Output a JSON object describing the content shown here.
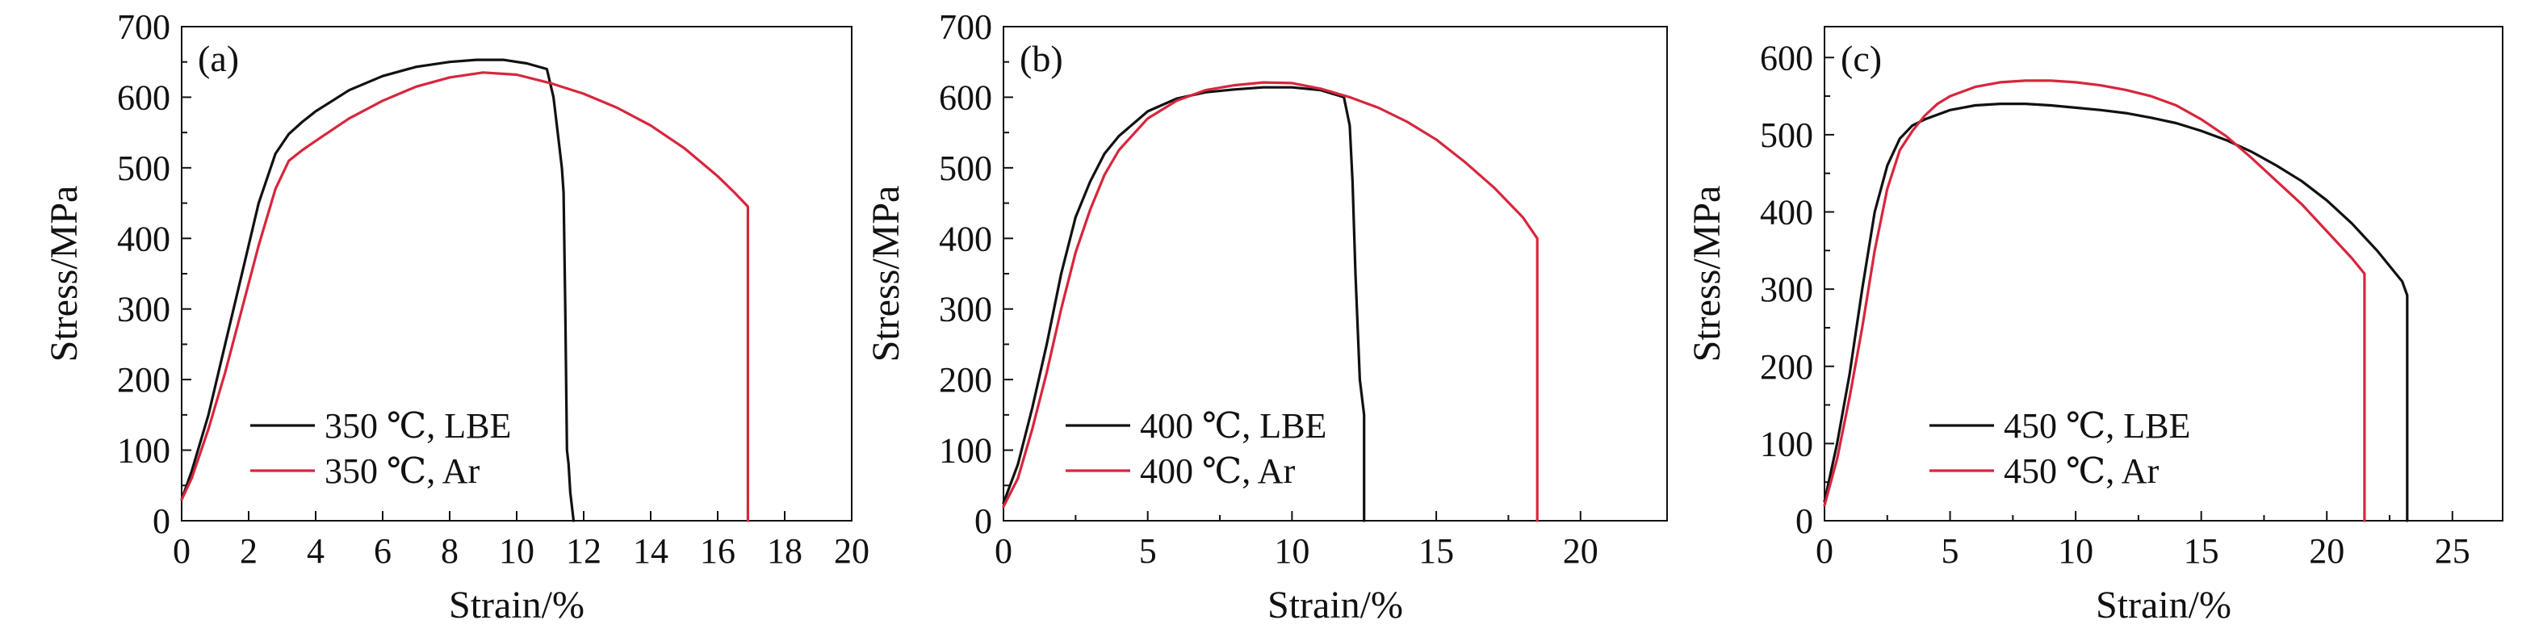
{
  "chart_data": [
    {
      "type": "line",
      "panel_label": "(a)",
      "xlabel": "Strain/%",
      "ylabel": "Stress/MPa",
      "xlim": [
        0,
        20
      ],
      "ylim": [
        0,
        700
      ],
      "xticks": [
        0,
        2,
        4,
        6,
        8,
        10,
        12,
        14,
        16,
        18,
        20
      ],
      "yticks": [
        0,
        100,
        200,
        300,
        400,
        500,
        600,
        700
      ],
      "grid": false,
      "legend_position": "lower-left",
      "series": [
        {
          "name": "350 ℃, LBE",
          "color": "#111111",
          "x": [
            0.0,
            0.3,
            0.8,
            1.3,
            1.8,
            2.3,
            2.8,
            3.2,
            3.6,
            4.0,
            5.0,
            6.0,
            7.0,
            8.0,
            8.8,
            9.6,
            10.3,
            10.9,
            11.1,
            11.2,
            11.35,
            11.4,
            11.45,
            11.5,
            11.55,
            11.6,
            11.7
          ],
          "y": [
            30,
            70,
            150,
            250,
            350,
            450,
            520,
            548,
            565,
            580,
            610,
            630,
            643,
            650,
            653,
            653,
            648,
            640,
            600,
            560,
            500,
            465,
            300,
            100,
            80,
            40,
            0
          ]
        },
        {
          "name": "350 ℃, Ar",
          "color": "#d7263d",
          "x": [
            0.0,
            0.3,
            0.8,
            1.3,
            1.8,
            2.3,
            2.8,
            3.2,
            3.6,
            4.0,
            5.0,
            6.0,
            7.0,
            8.0,
            9.0,
            10.0,
            11.0,
            12.0,
            13.0,
            14.0,
            15.0,
            16.0,
            16.5,
            16.9,
            16.9
          ],
          "y": [
            30,
            60,
            130,
            210,
            300,
            390,
            470,
            510,
            525,
            538,
            570,
            595,
            615,
            628,
            635,
            632,
            620,
            605,
            585,
            560,
            528,
            488,
            465,
            445,
            0
          ]
        }
      ],
      "legend": [
        "350 ℃, LBE",
        "350 ℃, Ar"
      ]
    },
    {
      "type": "line",
      "panel_label": "(b)",
      "xlabel": "Strain/%",
      "ylabel": "Stress/MPa",
      "xlim": [
        0,
        23
      ],
      "ylim": [
        0,
        700
      ],
      "xticks": [
        0,
        5,
        10,
        15,
        20
      ],
      "yticks": [
        0,
        100,
        200,
        300,
        400,
        500,
        600,
        700
      ],
      "grid": false,
      "legend_position": "lower-left",
      "series": [
        {
          "name": "400 ℃, LBE",
          "color": "#111111",
          "x": [
            0.0,
            0.5,
            1.0,
            1.5,
            2.0,
            2.5,
            3.0,
            3.5,
            4.0,
            5.0,
            6.0,
            7.0,
            8.0,
            9.0,
            10.0,
            11.0,
            11.8,
            12.0,
            12.1,
            12.2,
            12.35,
            12.5,
            12.5
          ],
          "y": [
            25,
            80,
            160,
            250,
            350,
            430,
            480,
            520,
            545,
            580,
            598,
            607,
            611,
            614,
            614,
            610,
            600,
            560,
            480,
            350,
            200,
            150,
            0
          ]
        },
        {
          "name": "400 ℃, Ar",
          "color": "#d7263d",
          "x": [
            0.0,
            0.5,
            1.0,
            1.5,
            2.0,
            2.5,
            3.0,
            3.5,
            4.0,
            5.0,
            6.0,
            7.0,
            8.0,
            9.0,
            10.0,
            11.0,
            12.0,
            13.0,
            14.0,
            15.0,
            16.0,
            17.0,
            18.0,
            18.5,
            18.5
          ],
          "y": [
            20,
            60,
            130,
            210,
            300,
            380,
            440,
            490,
            525,
            570,
            595,
            610,
            617,
            621,
            620,
            612,
            600,
            585,
            565,
            540,
            508,
            472,
            430,
            400,
            0
          ]
        }
      ],
      "legend": [
        "400 ℃, LBE",
        "400 ℃, Ar"
      ]
    },
    {
      "type": "line",
      "panel_label": "(c)",
      "xlabel": "Strain/%",
      "ylabel": "Stress/MPa",
      "xlim": [
        0,
        27
      ],
      "ylim": [
        0,
        640
      ],
      "xticks": [
        0,
        5,
        10,
        15,
        20,
        25
      ],
      "yticks": [
        0,
        100,
        200,
        300,
        400,
        500,
        600
      ],
      "grid": false,
      "legend_position": "lower-center",
      "series": [
        {
          "name": "450 ℃, LBE",
          "color": "#111111",
          "x": [
            0.0,
            0.5,
            1.0,
            1.5,
            2.0,
            2.5,
            3.0,
            3.5,
            4.0,
            5.0,
            6.0,
            7.0,
            8.0,
            9.0,
            10.0,
            11.0,
            12.0,
            13.0,
            14.0,
            15.0,
            16.0,
            17.0,
            18.0,
            19.0,
            20.0,
            21.0,
            22.0,
            23.0,
            23.2,
            23.2
          ],
          "y": [
            25,
            100,
            190,
            300,
            400,
            460,
            495,
            512,
            520,
            532,
            538,
            540,
            540,
            538,
            535,
            532,
            528,
            522,
            515,
            505,
            493,
            478,
            460,
            440,
            415,
            385,
            350,
            310,
            292,
            0
          ]
        },
        {
          "name": "450 ℃, Ar",
          "color": "#d7263d",
          "x": [
            0.0,
            0.5,
            1.0,
            1.5,
            2.0,
            2.5,
            3.0,
            3.5,
            4.0,
            4.5,
            5.0,
            6.0,
            7.0,
            8.0,
            9.0,
            10.0,
            11.0,
            12.0,
            13.0,
            14.0,
            15.0,
            16.0,
            17.0,
            18.0,
            19.0,
            20.0,
            21.0,
            21.5,
            21.5
          ],
          "y": [
            20,
            80,
            160,
            250,
            350,
            430,
            480,
            505,
            525,
            540,
            550,
            562,
            568,
            570,
            570,
            568,
            564,
            558,
            550,
            538,
            520,
            498,
            470,
            440,
            410,
            375,
            340,
            320,
            0
          ]
        }
      ],
      "legend": [
        "450 ℃, LBE",
        "450 ℃, Ar"
      ]
    }
  ]
}
